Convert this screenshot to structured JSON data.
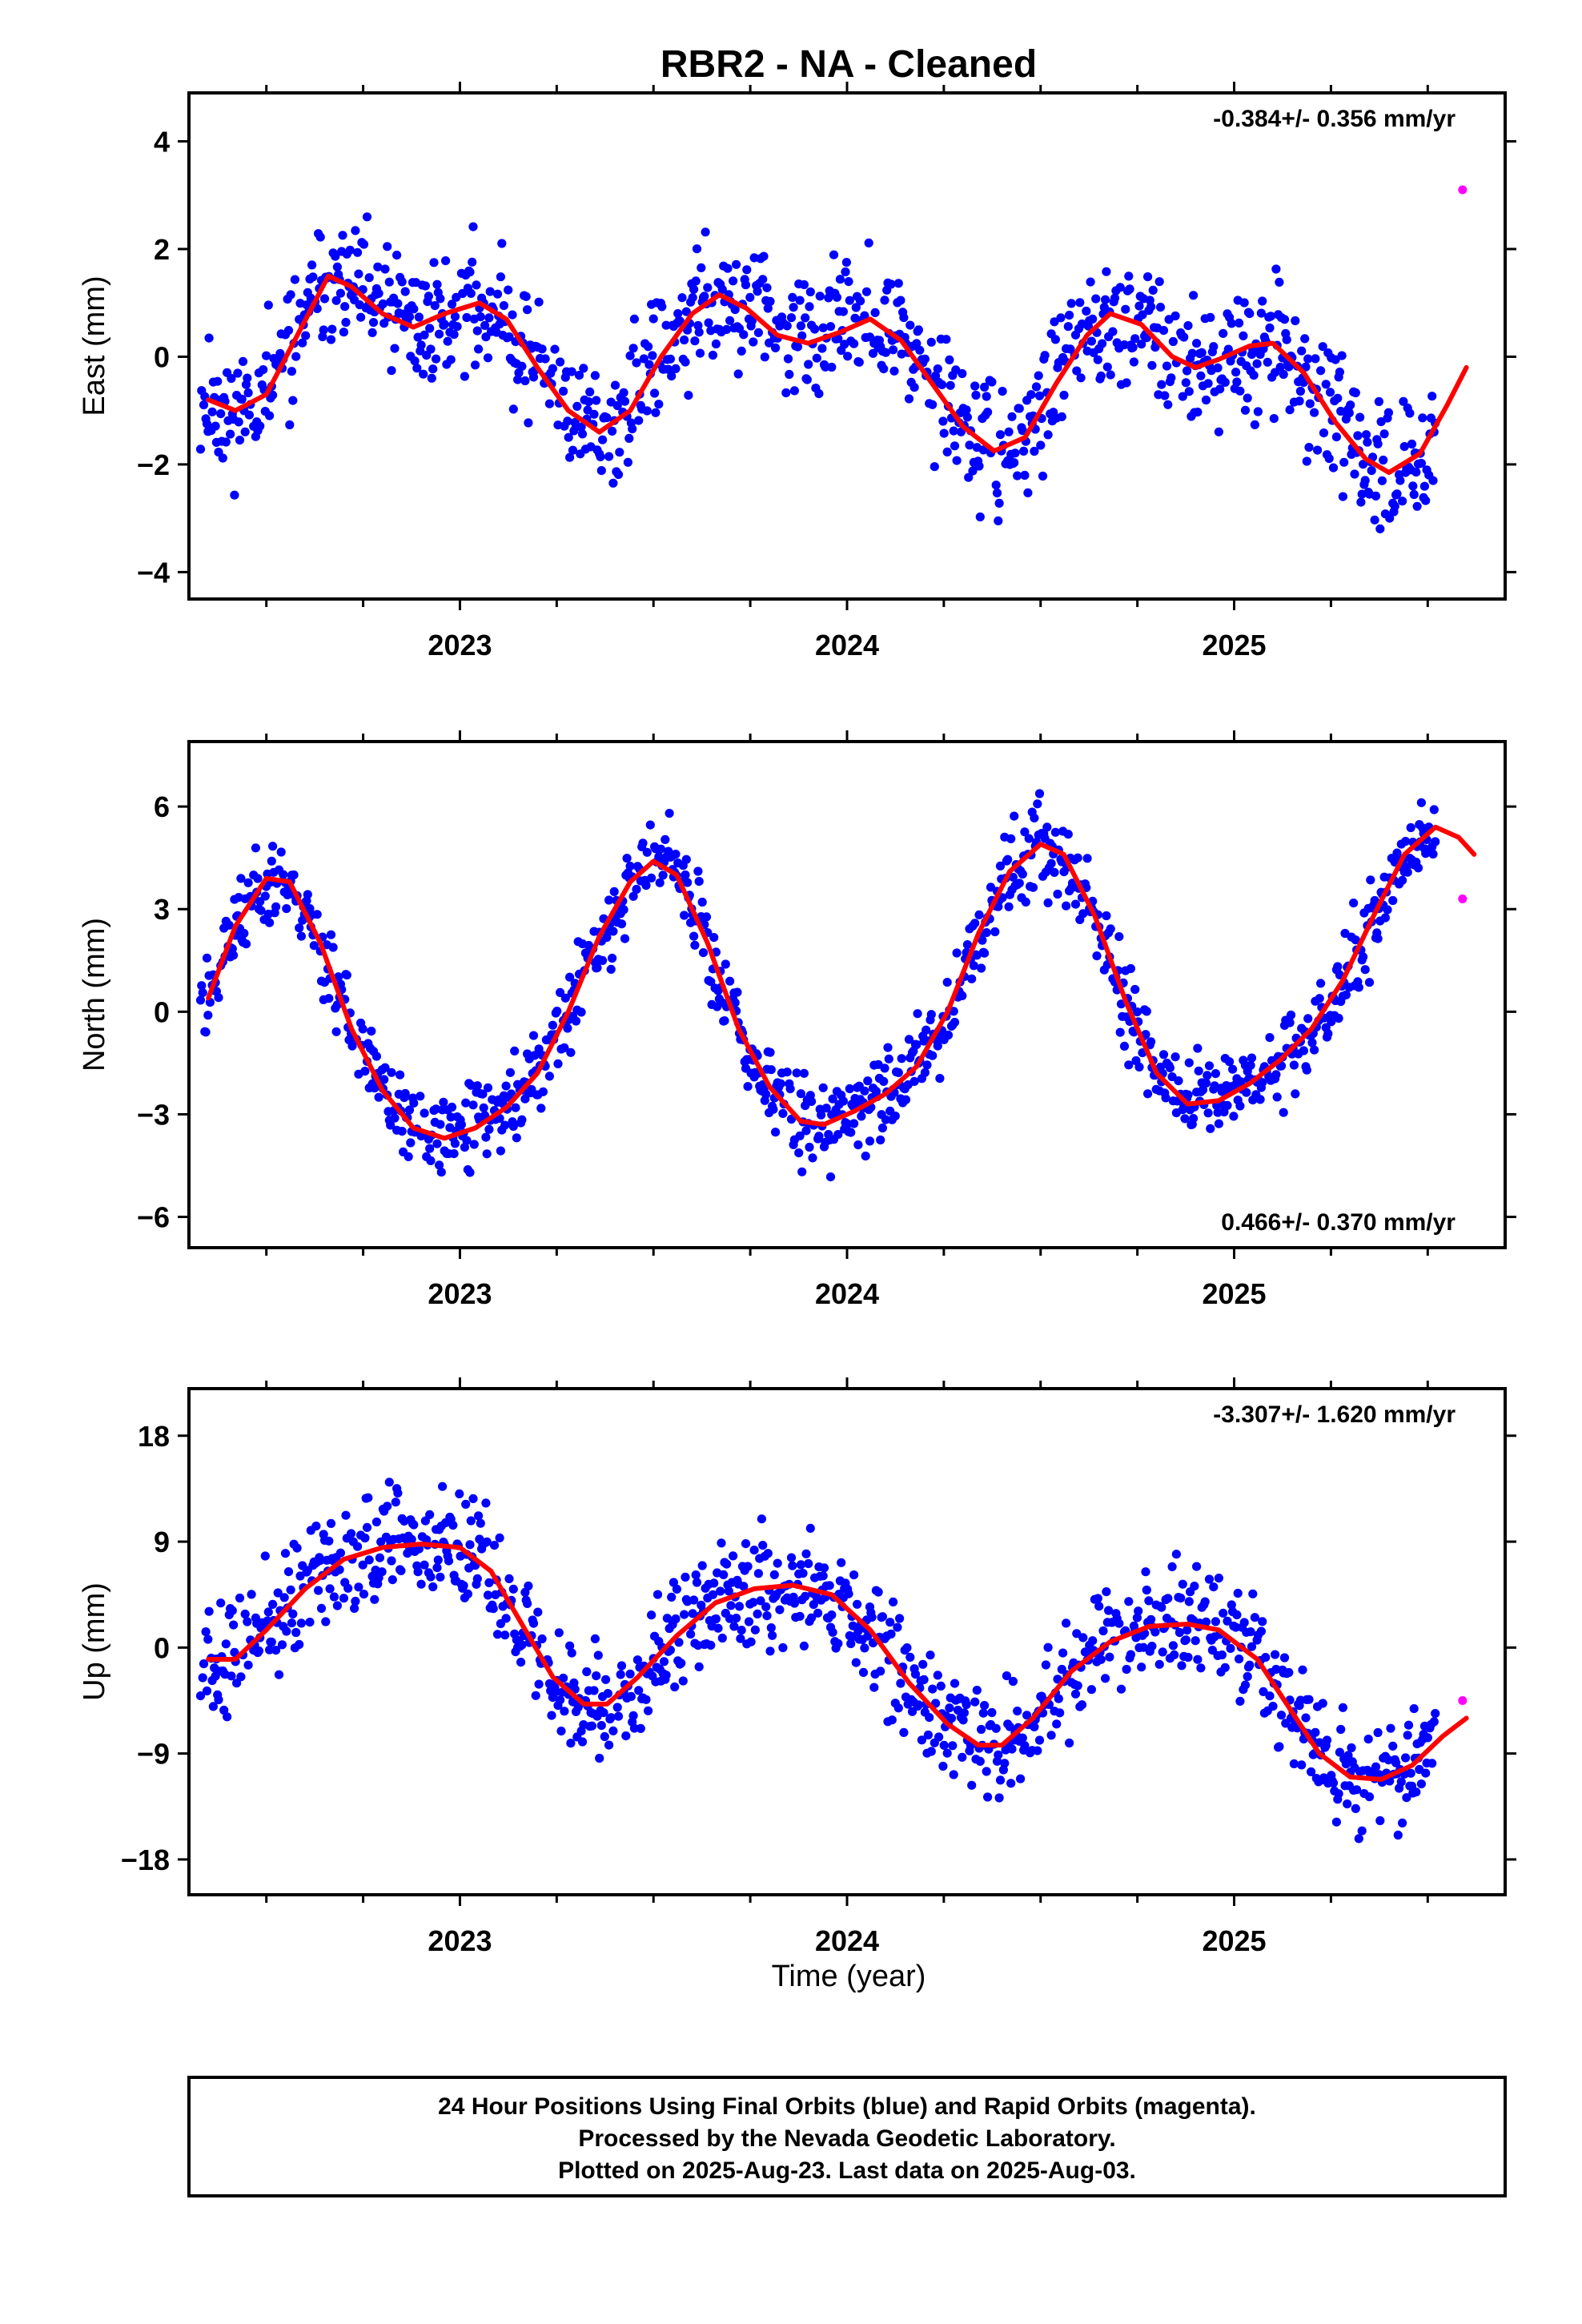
{
  "title": "RBR2  - NA - Cleaned",
  "xlabel": "Time (year)",
  "footer": {
    "line1": "24 Hour Positions Using Final Orbits (blue) and Rapid Orbits (magenta).",
    "line2": "Processed by the Nevada Geodetic Laboratory.",
    "line3": "Plotted on 2025-Aug-23. Last data on 2025-Aug-03."
  },
  "colors": {
    "final": "#0000ff",
    "rapid": "#ff00ff",
    "model": "#ff0000"
  },
  "chart_data": [
    {
      "type": "scatter",
      "component": "east",
      "ylabel": "East (mm)",
      "rate": "-0.384+/- 0.356 mm/yr",
      "rate_position": "top-right",
      "xlim": [
        2022.3,
        2025.7
      ],
      "ylim": [
        -4.5,
        4.9
      ],
      "yticks": [
        -4,
        -2,
        0,
        2,
        4
      ],
      "xticks": [
        2023,
        2024,
        2025
      ],
      "model": [
        [
          2022.35,
          -0.8
        ],
        [
          2022.42,
          -1.0
        ],
        [
          2022.5,
          -0.7
        ],
        [
          2022.58,
          0.4
        ],
        [
          2022.66,
          1.5
        ],
        [
          2022.72,
          1.3
        ],
        [
          2022.8,
          0.8
        ],
        [
          2022.88,
          0.55
        ],
        [
          2022.96,
          0.8
        ],
        [
          2023.05,
          1.0
        ],
        [
          2023.12,
          0.7
        ],
        [
          2023.2,
          -0.2
        ],
        [
          2023.28,
          -1.0
        ],
        [
          2023.36,
          -1.4
        ],
        [
          2023.44,
          -1.0
        ],
        [
          2023.52,
          0.0
        ],
        [
          2023.6,
          0.8
        ],
        [
          2023.67,
          1.15
        ],
        [
          2023.74,
          0.9
        ],
        [
          2023.82,
          0.4
        ],
        [
          2023.9,
          0.25
        ],
        [
          2023.98,
          0.45
        ],
        [
          2024.06,
          0.7
        ],
        [
          2024.14,
          0.3
        ],
        [
          2024.22,
          -0.5
        ],
        [
          2024.3,
          -1.3
        ],
        [
          2024.38,
          -1.75
        ],
        [
          2024.46,
          -1.5
        ],
        [
          2024.54,
          -0.5
        ],
        [
          2024.62,
          0.4
        ],
        [
          2024.68,
          0.8
        ],
        [
          2024.76,
          0.6
        ],
        [
          2024.84,
          0.0
        ],
        [
          2024.9,
          -0.2
        ],
        [
          2024.96,
          -0.05
        ],
        [
          2025.04,
          0.2
        ],
        [
          2025.1,
          0.25
        ],
        [
          2025.18,
          -0.3
        ],
        [
          2025.26,
          -1.2
        ],
        [
          2025.34,
          -1.9
        ],
        [
          2025.4,
          -2.15
        ],
        [
          2025.48,
          -1.8
        ],
        [
          2025.55,
          -0.9
        ],
        [
          2025.6,
          -0.2
        ]
      ],
      "rapid": [
        [
          2025.59,
          3.1
        ]
      ],
      "amp": 1.0,
      "seed": 11
    },
    {
      "type": "scatter",
      "component": "north",
      "ylabel": "North (mm)",
      "rate": "0.466+/- 0.370 mm/yr",
      "rate_position": "bottom-right",
      "xlim": [
        2022.3,
        2025.7
      ],
      "ylim": [
        -6.9,
        7.9
      ],
      "yticks": [
        -6,
        -3,
        0,
        3,
        6
      ],
      "xticks": [
        2023,
        2024,
        2025
      ],
      "model": [
        [
          2022.35,
          0.4
        ],
        [
          2022.42,
          2.5
        ],
        [
          2022.5,
          3.9
        ],
        [
          2022.56,
          3.8
        ],
        [
          2022.64,
          2.0
        ],
        [
          2022.72,
          -0.5
        ],
        [
          2022.8,
          -2.3
        ],
        [
          2022.88,
          -3.4
        ],
        [
          2022.96,
          -3.7
        ],
        [
          2023.04,
          -3.4
        ],
        [
          2023.12,
          -2.8
        ],
        [
          2023.2,
          -1.8
        ],
        [
          2023.28,
          0.0
        ],
        [
          2023.36,
          2.2
        ],
        [
          2023.44,
          3.8
        ],
        [
          2023.5,
          4.4
        ],
        [
          2023.56,
          4.0
        ],
        [
          2023.64,
          2.0
        ],
        [
          2023.72,
          -0.5
        ],
        [
          2023.8,
          -2.2
        ],
        [
          2023.88,
          -3.2
        ],
        [
          2023.94,
          -3.3
        ],
        [
          2024.02,
          -2.9
        ],
        [
          2024.1,
          -2.4
        ],
        [
          2024.18,
          -1.6
        ],
        [
          2024.26,
          0.0
        ],
        [
          2024.34,
          2.3
        ],
        [
          2024.42,
          4.1
        ],
        [
          2024.5,
          4.9
        ],
        [
          2024.56,
          4.6
        ],
        [
          2024.64,
          2.8
        ],
        [
          2024.72,
          0.3
        ],
        [
          2024.8,
          -1.8
        ],
        [
          2024.88,
          -2.7
        ],
        [
          2024.96,
          -2.6
        ],
        [
          2025.04,
          -2.1
        ],
        [
          2025.12,
          -1.4
        ],
        [
          2025.2,
          -0.5
        ],
        [
          2025.28,
          0.9
        ],
        [
          2025.36,
          2.8
        ],
        [
          2025.44,
          4.6
        ],
        [
          2025.52,
          5.4
        ],
        [
          2025.58,
          5.1
        ],
        [
          2025.62,
          4.6
        ]
      ],
      "rapid": [
        [
          2025.59,
          3.3
        ]
      ],
      "amp": 1.1,
      "seed": 23
    },
    {
      "type": "scatter",
      "component": "up",
      "ylabel": "Up (mm)",
      "rate": "-3.307+/- 1.620 mm/yr",
      "rate_position": "top-right",
      "xlim": [
        2022.3,
        2025.7
      ],
      "ylim": [
        -21,
        22
      ],
      "yticks": [
        -18,
        -9,
        0,
        9,
        18
      ],
      "xticks": [
        2023,
        2024,
        2025
      ],
      "model": [
        [
          2022.35,
          -1.0
        ],
        [
          2022.42,
          -1.0
        ],
        [
          2022.5,
          1.5
        ],
        [
          2022.6,
          5.0
        ],
        [
          2022.7,
          7.5
        ],
        [
          2022.8,
          8.5
        ],
        [
          2022.9,
          8.8
        ],
        [
          2023.0,
          8.5
        ],
        [
          2023.08,
          6.5
        ],
        [
          2023.16,
          2.0
        ],
        [
          2023.24,
          -2.5
        ],
        [
          2023.32,
          -4.8
        ],
        [
          2023.38,
          -4.8
        ],
        [
          2023.46,
          -2.5
        ],
        [
          2023.56,
          1.0
        ],
        [
          2023.66,
          3.8
        ],
        [
          2023.76,
          5.0
        ],
        [
          2023.86,
          5.3
        ],
        [
          2023.96,
          4.5
        ],
        [
          2024.06,
          1.5
        ],
        [
          2024.16,
          -3.0
        ],
        [
          2024.26,
          -6.5
        ],
        [
          2024.34,
          -8.3
        ],
        [
          2024.4,
          -8.3
        ],
        [
          2024.48,
          -6.0
        ],
        [
          2024.58,
          -2.0
        ],
        [
          2024.68,
          0.5
        ],
        [
          2024.78,
          1.8
        ],
        [
          2024.88,
          2.0
        ],
        [
          2024.96,
          1.5
        ],
        [
          2025.06,
          -1.0
        ],
        [
          2025.14,
          -5.0
        ],
        [
          2025.22,
          -9.0
        ],
        [
          2025.3,
          -11.0
        ],
        [
          2025.38,
          -11.2
        ],
        [
          2025.46,
          -10.0
        ],
        [
          2025.54,
          -7.5
        ],
        [
          2025.6,
          -6.0
        ]
      ],
      "rapid": [
        [
          2025.59,
          -4.5
        ]
      ],
      "amp": 4.0,
      "seed": 37
    }
  ]
}
